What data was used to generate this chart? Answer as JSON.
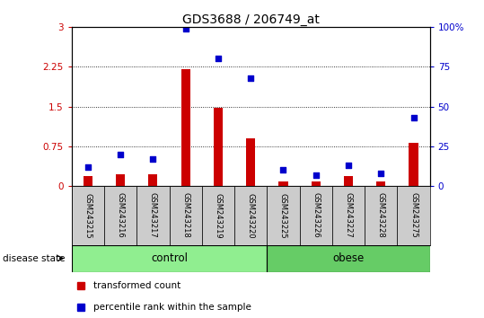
{
  "title": "GDS3688 / 206749_at",
  "samples": [
    "GSM243215",
    "GSM243216",
    "GSM243217",
    "GSM243218",
    "GSM243219",
    "GSM243220",
    "GSM243225",
    "GSM243226",
    "GSM243227",
    "GSM243228",
    "GSM243275"
  ],
  "transformed_count": [
    0.18,
    0.22,
    0.22,
    2.2,
    1.48,
    0.9,
    0.08,
    0.08,
    0.18,
    0.08,
    0.82
  ],
  "percentile_rank": [
    12,
    20,
    17,
    99,
    80,
    68,
    10,
    7,
    13,
    8,
    43
  ],
  "groups": [
    {
      "label": "control",
      "indices": [
        0,
        1,
        2,
        3,
        4,
        5
      ],
      "color": "#90EE90"
    },
    {
      "label": "obese",
      "indices": [
        6,
        7,
        8,
        9,
        10
      ],
      "color": "#66CC66"
    }
  ],
  "bar_color": "#CC0000",
  "dot_color": "#0000CC",
  "ylim_left": [
    0,
    3
  ],
  "ylim_right": [
    0,
    100
  ],
  "yticks_left": [
    0,
    0.75,
    1.5,
    2.25,
    3
  ],
  "yticks_right": [
    0,
    25,
    50,
    75,
    100
  ],
  "ytick_labels_left": [
    "0",
    "0.75",
    "1.5",
    "2.25",
    "3"
  ],
  "ytick_labels_right": [
    "0",
    "25",
    "50",
    "75",
    "100%"
  ],
  "hlines": [
    0.75,
    1.5,
    2.25
  ],
  "legend_items": [
    {
      "label": "transformed count",
      "color": "#CC0000"
    },
    {
      "label": "percentile rank within the sample",
      "color": "#0000CC"
    }
  ],
  "disease_state_label": "disease state",
  "tick_area_bg": "#cccccc"
}
